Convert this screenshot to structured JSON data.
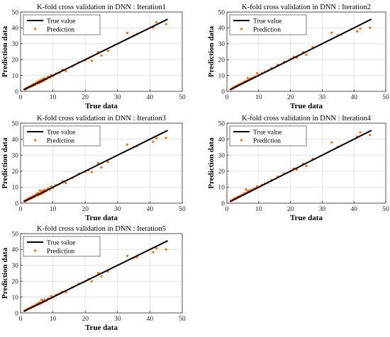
{
  "chart_data": [
    {
      "type": "scatter",
      "title": "K-fold cross validation in DNN : Iteration1",
      "xlabel": "True data",
      "ylabel": "Prediction data",
      "xlim": [
        0,
        50
      ],
      "ylim": [
        0,
        50
      ],
      "xticks": [
        0,
        10,
        20,
        30,
        40,
        50
      ],
      "yticks": [
        0,
        10,
        20,
        30,
        40,
        50
      ],
      "grid": true,
      "legend_position": "top-left",
      "series": [
        {
          "name": "True value",
          "kind": "line",
          "color": "#000000",
          "x": [
            1,
            45.5
          ],
          "y": [
            1,
            45.5
          ]
        },
        {
          "name": "Prediction",
          "kind": "scatter",
          "color": "#ff6a13",
          "x": [
            1.2,
            1.5,
            1.8,
            2.0,
            2.3,
            2.5,
            2.8,
            3.0,
            3.2,
            3.5,
            3.8,
            4.0,
            4.2,
            4.5,
            4.8,
            5.0,
            5.3,
            5.5,
            5.8,
            6.0,
            6.3,
            6.5,
            6.8,
            7.0,
            7.3,
            7.5,
            8.0,
            8.5,
            9.0,
            9.5,
            10.0,
            11.0,
            12.0,
            13.0,
            14.0,
            16.0,
            18.0,
            20.0,
            21.0,
            22.0,
            24.0,
            25.0,
            27.0,
            33.0,
            35.0,
            36.0,
            41.0,
            42.0,
            45.0
          ],
          "y": [
            1.4,
            1.3,
            2.1,
            1.8,
            2.6,
            2.4,
            3.1,
            2.8,
            3.6,
            3.3,
            4.3,
            3.7,
            4.6,
            4.2,
            5.3,
            5.7,
            4.9,
            6.3,
            5.4,
            6.8,
            5.9,
            7.2,
            6.3,
            7.8,
            6.9,
            8.3,
            7.6,
            9.2,
            8.6,
            10.3,
            9.6,
            11.2,
            11.8,
            13.6,
            12.8,
            15.6,
            18.3,
            19.6,
            20.8,
            19.2,
            24.8,
            22.6,
            25.6,
            36.8,
            35.2,
            36.1,
            40.2,
            43.6,
            42.4
          ]
        }
      ]
    },
    {
      "type": "scatter",
      "title": "K-fold cross validation in DNN : Iteration2",
      "xlabel": "True data",
      "ylabel": "Prediction data",
      "xlim": [
        0,
        50
      ],
      "ylim": [
        0,
        50
      ],
      "xticks": [
        0,
        10,
        20,
        30,
        40,
        50
      ],
      "yticks": [
        0,
        10,
        20,
        30,
        40,
        50
      ],
      "grid": true,
      "legend_position": "top-left",
      "series": [
        {
          "name": "True value",
          "kind": "line",
          "color": "#000000",
          "x": [
            1,
            45.5
          ],
          "y": [
            1,
            45.5
          ]
        },
        {
          "name": "Prediction",
          "kind": "scatter",
          "color": "#ff6a13",
          "x": [
            1.2,
            1.5,
            1.8,
            2.0,
            2.3,
            2.5,
            2.8,
            3.0,
            3.2,
            3.5,
            3.8,
            4.0,
            4.2,
            4.5,
            4.8,
            5.0,
            5.3,
            5.5,
            5.8,
            6.0,
            6.3,
            6.5,
            6.8,
            7.0,
            7.3,
            7.5,
            8.0,
            8.5,
            9.0,
            9.5,
            10.0,
            11.0,
            12.0,
            13.0,
            14.0,
            16.0,
            18.0,
            20.0,
            21.0,
            22.0,
            24.0,
            25.0,
            27.0,
            33.0,
            35.0,
            36.0,
            41.0,
            42.0,
            45.0
          ],
          "y": [
            1.3,
            1.6,
            2.0,
            2.3,
            2.5,
            2.9,
            3.0,
            3.4,
            3.3,
            3.9,
            4.1,
            4.4,
            4.3,
            4.9,
            5.2,
            5.0,
            5.6,
            6.1,
            6.0,
            6.5,
            6.6,
            8.4,
            7.1,
            7.6,
            7.4,
            8.1,
            8.2,
            9.0,
            9.3,
            11.4,
            10.2,
            11.5,
            12.4,
            13.1,
            14.6,
            16.8,
            18.6,
            20.3,
            21.8,
            21.2,
            24.6,
            23.1,
            27.8,
            36.9,
            35.4,
            35.8,
            37.8,
            39.6,
            40.1
          ]
        }
      ]
    },
    {
      "type": "scatter",
      "title": "K-fold cross validation in DNN : Iteration3",
      "xlabel": "True data",
      "ylabel": "Prediction data",
      "xlim": [
        0,
        50
      ],
      "ylim": [
        0,
        50
      ],
      "xticks": [
        0,
        10,
        20,
        30,
        40,
        50
      ],
      "yticks": [
        0,
        10,
        20,
        30,
        40,
        50
      ],
      "grid": true,
      "legend_position": "top-left",
      "series": [
        {
          "name": "True value",
          "kind": "line",
          "color": "#000000",
          "x": [
            1,
            45.5
          ],
          "y": [
            1,
            45.5
          ]
        },
        {
          "name": "Prediction",
          "kind": "scatter",
          "color": "#ff6a13",
          "x": [
            1.2,
            1.5,
            1.8,
            2.0,
            2.3,
            2.5,
            2.8,
            3.0,
            3.2,
            3.5,
            3.8,
            4.0,
            4.2,
            4.5,
            4.8,
            5.0,
            5.3,
            5.5,
            5.8,
            6.0,
            6.3,
            6.5,
            6.8,
            7.0,
            7.3,
            7.5,
            8.0,
            8.5,
            9.0,
            9.5,
            10.0,
            11.0,
            12.0,
            13.0,
            14.0,
            16.0,
            18.0,
            20.0,
            21.0,
            22.0,
            24.0,
            25.0,
            27.0,
            33.0,
            35.0,
            36.0,
            41.0,
            42.0,
            45.0
          ],
          "y": [
            1.5,
            1.2,
            2.2,
            1.9,
            2.7,
            2.3,
            3.2,
            2.7,
            3.7,
            3.2,
            4.4,
            3.6,
            4.7,
            4.1,
            5.4,
            5.8,
            4.8,
            6.4,
            5.3,
            7.9,
            5.8,
            7.3,
            6.2,
            7.9,
            6.8,
            8.4,
            7.5,
            9.3,
            8.5,
            10.4,
            9.5,
            11.3,
            12.0,
            13.8,
            12.6,
            15.8,
            18.4,
            19.8,
            20.6,
            19.4,
            25.0,
            22.4,
            25.8,
            36.6,
            35.0,
            35.6,
            38.5,
            40.6,
            40.8
          ]
        }
      ]
    },
    {
      "type": "scatter",
      "title": "K-fold cross validation in DNN : Iteration4",
      "xlabel": "True data",
      "ylabel": "Prediction data",
      "xlim": [
        0,
        50
      ],
      "ylim": [
        0,
        50
      ],
      "xticks": [
        0,
        10,
        20,
        30,
        40,
        50
      ],
      "yticks": [
        0,
        10,
        20,
        30,
        40,
        50
      ],
      "grid": true,
      "legend_position": "top-left",
      "series": [
        {
          "name": "True value",
          "kind": "line",
          "color": "#000000",
          "x": [
            1,
            45.5
          ],
          "y": [
            1,
            45.5
          ]
        },
        {
          "name": "Prediction",
          "kind": "scatter",
          "color": "#ff6a13",
          "x": [
            1.2,
            1.5,
            1.8,
            2.0,
            2.3,
            2.5,
            2.8,
            3.0,
            3.2,
            3.5,
            3.8,
            4.0,
            4.2,
            4.5,
            4.8,
            5.0,
            5.3,
            5.5,
            5.8,
            6.0,
            6.3,
            6.5,
            6.8,
            7.0,
            7.3,
            7.5,
            8.0,
            8.5,
            9.0,
            9.5,
            10.0,
            11.0,
            12.0,
            13.0,
            14.0,
            16.0,
            18.0,
            20.0,
            21.0,
            22.0,
            24.0,
            25.0,
            27.0,
            33.0,
            35.0,
            36.0,
            41.0,
            42.0,
            45.0
          ],
          "y": [
            1.3,
            1.7,
            2.0,
            2.4,
            2.4,
            3.0,
            2.9,
            3.5,
            3.2,
            4.0,
            4.0,
            4.5,
            4.2,
            5.0,
            5.1,
            5.1,
            5.5,
            6.2,
            5.9,
            8.6,
            6.5,
            7.5,
            7.0,
            7.7,
            7.3,
            8.2,
            8.1,
            9.1,
            9.2,
            10.5,
            10.1,
            11.4,
            12.3,
            13.2,
            14.4,
            16.6,
            18.5,
            20.1,
            21.6,
            21.0,
            24.7,
            23.3,
            27.6,
            38.0,
            35.2,
            36.0,
            41.6,
            44.2,
            42.6
          ]
        }
      ]
    },
    {
      "type": "scatter",
      "title": "K-fold cross validation in DNN : Iteration5",
      "xlabel": "True data",
      "ylabel": "Prediction data",
      "xlim": [
        0,
        50
      ],
      "ylim": [
        0,
        50
      ],
      "xticks": [
        0,
        10,
        20,
        30,
        40,
        50
      ],
      "yticks": [
        0,
        10,
        20,
        30,
        40,
        50
      ],
      "grid": true,
      "legend_position": "top-left",
      "series": [
        {
          "name": "True value",
          "kind": "line",
          "color": "#000000",
          "x": [
            1,
            45.5
          ],
          "y": [
            1,
            45.5
          ]
        },
        {
          "name": "Prediction",
          "kind": "scatter",
          "color": "#ff6a13",
          "x": [
            1.2,
            1.5,
            1.8,
            2.0,
            2.3,
            2.5,
            2.8,
            3.0,
            3.2,
            3.5,
            3.8,
            4.0,
            4.2,
            4.5,
            4.8,
            5.0,
            5.3,
            5.5,
            5.8,
            6.0,
            6.3,
            6.5,
            6.8,
            7.0,
            7.3,
            7.5,
            8.0,
            8.5,
            9.0,
            9.5,
            10.0,
            11.0,
            12.0,
            13.0,
            14.0,
            16.0,
            18.0,
            20.0,
            21.0,
            22.0,
            24.0,
            25.0,
            27.0,
            33.0,
            35.0,
            36.0,
            41.0,
            42.0,
            45.0
          ],
          "y": [
            1.4,
            1.4,
            2.1,
            2.2,
            2.6,
            2.6,
            3.1,
            3.1,
            3.5,
            3.6,
            4.2,
            4.0,
            4.5,
            4.6,
            5.3,
            5.4,
            5.2,
            6.2,
            5.7,
            6.6,
            6.1,
            8.3,
            6.7,
            7.7,
            7.1,
            8.2,
            7.8,
            9.1,
            8.9,
            10.6,
            9.8,
            11.4,
            12.1,
            13.4,
            13.1,
            16.2,
            18.4,
            19.9,
            21.2,
            20.0,
            25.2,
            23.0,
            26.1,
            36.0,
            34.8,
            35.2,
            38.2,
            40.8,
            40.0
          ]
        }
      ]
    }
  ]
}
